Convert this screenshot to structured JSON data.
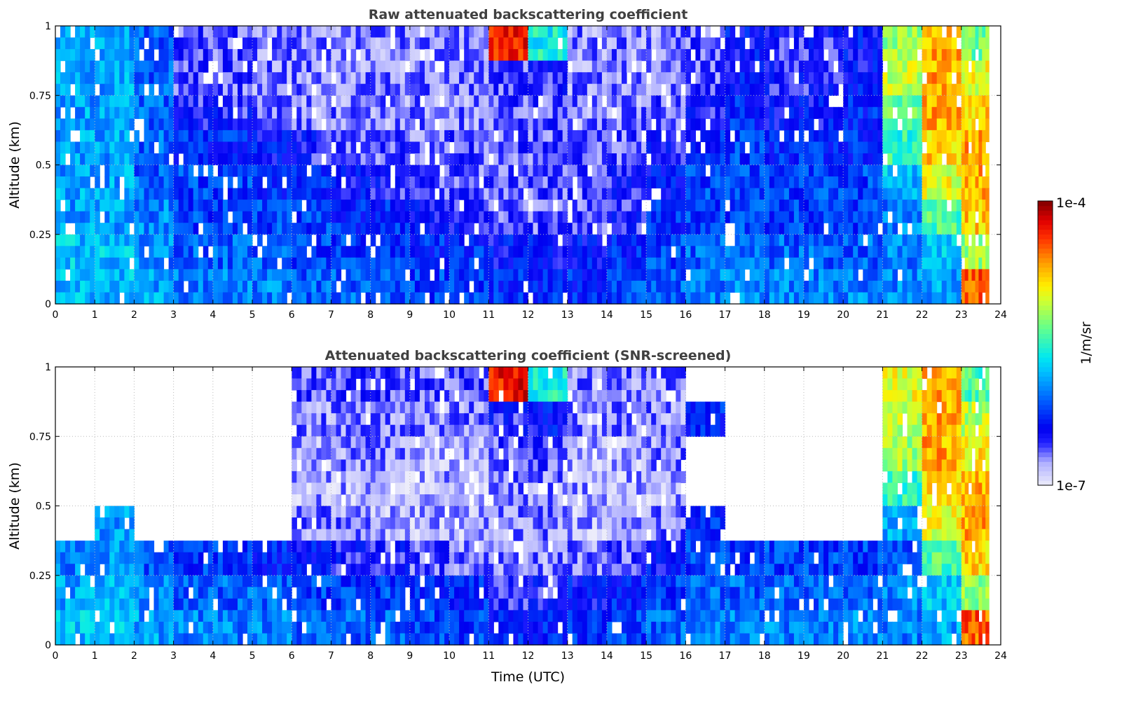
{
  "chart_data": {
    "type": "heatmap",
    "panels": [
      {
        "title": "Raw attenuated backscattering coefficient",
        "ylabel": "Altitude (km)",
        "xlabel": "",
        "x_hours": [
          0,
          1,
          2,
          3,
          4,
          5,
          6,
          7,
          8,
          9,
          10,
          11,
          12,
          13,
          14,
          15,
          16,
          17,
          18,
          19,
          20,
          21,
          22,
          23
        ],
        "altitude_bins_top_to_bottom_km": [
          0.9375,
          0.8125,
          0.6875,
          0.5625,
          0.4375,
          0.3125,
          0.1875,
          0.0625
        ],
        "log10_values": [
          [
            -5.9,
            -5.9,
            -6.1,
            -6.6,
            -6.6,
            -6.7,
            -6.7,
            -6.7,
            -6.7,
            -6.7,
            -6.7,
            -4.3,
            -5.6,
            -6.7,
            -6.7,
            -6.7,
            -6.6,
            -6.4,
            -6.5,
            -6.5,
            -6.4,
            -5.2,
            -4.7,
            -5.3
          ],
          [
            -5.9,
            -5.9,
            -6.1,
            -6.6,
            -6.6,
            -6.7,
            -6.7,
            -6.7,
            -6.7,
            -6.7,
            -6.7,
            -6.6,
            -6.5,
            -6.7,
            -6.7,
            -6.7,
            -6.6,
            -6.4,
            -6.5,
            -6.5,
            -6.4,
            -5.1,
            -4.7,
            -5.0
          ],
          [
            -5.9,
            -5.9,
            -6.1,
            -6.5,
            -6.5,
            -6.6,
            -6.7,
            -6.7,
            -6.7,
            -6.7,
            -6.7,
            -6.6,
            -6.6,
            -6.7,
            -6.7,
            -6.6,
            -6.5,
            -6.3,
            -6.4,
            -6.4,
            -6.3,
            -5.3,
            -4.7,
            -4.8
          ],
          [
            -5.9,
            -5.9,
            -6.1,
            -6.3,
            -6.3,
            -6.4,
            -6.5,
            -6.6,
            -6.6,
            -6.7,
            -6.6,
            -6.6,
            -6.6,
            -6.6,
            -6.6,
            -6.5,
            -6.3,
            -6.2,
            -6.3,
            -6.3,
            -6.3,
            -5.5,
            -4.8,
            -4.7
          ],
          [
            -5.9,
            -5.9,
            -6.1,
            -6.2,
            -6.2,
            -6.3,
            -6.3,
            -6.4,
            -6.5,
            -6.6,
            -6.6,
            -6.6,
            -6.6,
            -6.6,
            -6.5,
            -6.4,
            -6.2,
            -6.2,
            -6.2,
            -6.2,
            -6.2,
            -5.8,
            -5.0,
            -4.7
          ],
          [
            -5.9,
            -5.9,
            -6.0,
            -6.2,
            -6.2,
            -6.2,
            -6.2,
            -6.3,
            -6.3,
            -6.4,
            -6.5,
            -6.6,
            -6.6,
            -6.6,
            -6.5,
            -6.3,
            -6.2,
            -6.2,
            -6.2,
            -6.2,
            -6.2,
            -6.0,
            -5.4,
            -4.8
          ],
          [
            -5.8,
            -5.8,
            -6.0,
            -6.1,
            -6.1,
            -6.1,
            -6.2,
            -6.2,
            -6.2,
            -6.3,
            -6.3,
            -6.4,
            -6.4,
            -6.4,
            -6.3,
            -6.2,
            -6.1,
            -6.1,
            -6.1,
            -6.1,
            -6.1,
            -6.0,
            -5.8,
            -5.2
          ],
          [
            -5.8,
            -5.8,
            -5.9,
            -6.0,
            -6.0,
            -6.0,
            -6.1,
            -6.1,
            -6.1,
            -6.2,
            -6.2,
            -6.3,
            -6.3,
            -6.3,
            -6.2,
            -6.1,
            -6.0,
            -6.0,
            -6.0,
            -6.0,
            -6.0,
            -6.0,
            -5.9,
            -4.5
          ]
        ]
      },
      {
        "title": "Attenuated backscattering coefficient (SNR-screened)",
        "ylabel": "Altitude (km)",
        "xlabel": "Time (UTC)",
        "x_hours": [
          0,
          1,
          2,
          3,
          4,
          5,
          6,
          7,
          8,
          9,
          10,
          11,
          12,
          13,
          14,
          15,
          16,
          17,
          18,
          19,
          20,
          21,
          22,
          23
        ],
        "altitude_bins_top_to_bottom_km": [
          0.9375,
          0.8125,
          0.6875,
          0.5625,
          0.4375,
          0.3125,
          0.1875,
          0.0625
        ],
        "log10_values": [
          [
            null,
            null,
            null,
            null,
            null,
            null,
            -6.6,
            -6.6,
            -6.6,
            -6.6,
            -6.6,
            -4.3,
            -5.6,
            -6.7,
            -6.7,
            -6.7,
            null,
            null,
            null,
            null,
            null,
            -5.0,
            -4.7,
            -5.4
          ],
          [
            null,
            null,
            null,
            null,
            null,
            null,
            -6.7,
            -6.7,
            -6.7,
            -6.7,
            -6.7,
            -6.5,
            -6.4,
            -6.7,
            -6.7,
            -6.7,
            -6.3,
            null,
            null,
            null,
            null,
            -5.1,
            -4.7,
            -5.1
          ],
          [
            null,
            null,
            null,
            null,
            null,
            null,
            -6.8,
            -6.7,
            -6.7,
            -6.8,
            -6.8,
            -6.6,
            -6.6,
            -6.8,
            -6.8,
            -6.7,
            null,
            null,
            null,
            null,
            null,
            -5.2,
            -4.7,
            -4.9
          ],
          [
            null,
            null,
            null,
            null,
            null,
            null,
            -6.8,
            -6.8,
            -6.8,
            -6.8,
            -6.8,
            -6.7,
            -6.7,
            -6.8,
            -6.8,
            -6.8,
            null,
            null,
            null,
            null,
            null,
            -5.5,
            -4.8,
            -4.7
          ],
          [
            null,
            -5.9,
            null,
            null,
            null,
            null,
            -6.7,
            -6.7,
            -6.8,
            -6.8,
            -6.8,
            -6.7,
            -6.7,
            -6.8,
            -6.8,
            -6.7,
            -6.3,
            null,
            null,
            null,
            null,
            -5.9,
            -5.0,
            -4.7
          ],
          [
            -6.0,
            -5.9,
            -6.1,
            -6.2,
            -6.2,
            -6.3,
            -6.4,
            -6.5,
            -6.5,
            -6.6,
            -6.7,
            -6.7,
            -6.7,
            -6.7,
            -6.6,
            -6.4,
            -6.2,
            -6.2,
            -6.2,
            -6.2,
            -6.2,
            -6.1,
            -5.4,
            -4.8
          ],
          [
            -5.9,
            -5.8,
            -6.0,
            -6.1,
            -6.1,
            -6.1,
            -6.2,
            -6.2,
            -6.2,
            -6.3,
            -6.3,
            -6.5,
            -6.5,
            -6.4,
            -6.3,
            -6.2,
            -6.1,
            -6.1,
            -6.1,
            -6.1,
            -6.1,
            -6.0,
            -5.8,
            -5.2
          ],
          [
            -5.8,
            -5.8,
            -5.9,
            -6.0,
            -6.0,
            -6.0,
            -6.1,
            -6.1,
            -6.1,
            -6.2,
            -6.2,
            -6.3,
            -6.3,
            -6.3,
            -6.2,
            -6.1,
            -6.0,
            -6.0,
            -6.0,
            -6.0,
            -6.0,
            -6.0,
            -5.9,
            -4.5
          ]
        ]
      }
    ],
    "xlim": [
      0,
      24
    ],
    "ylim": [
      0,
      1
    ],
    "x_ticks": [
      "0",
      "1",
      "2",
      "3",
      "4",
      "5",
      "6",
      "7",
      "8",
      "9",
      "10",
      "11",
      "12",
      "13",
      "14",
      "15",
      "16",
      "17",
      "18",
      "19",
      "20",
      "21",
      "22",
      "23",
      "24"
    ],
    "y_ticks": [
      {
        "value": 0,
        "label": "0"
      },
      {
        "value": 0.25,
        "label": "0.25"
      },
      {
        "value": 0.5,
        "label": "0.5"
      },
      {
        "value": 0.75,
        "label": "0.75"
      },
      {
        "value": 1,
        "label": "1"
      }
    ],
    "grid": true,
    "colorbar": {
      "label": "1/m/sr",
      "min_label": "1e-7",
      "max_label": "1e-4",
      "log10_range": [
        -7,
        -4
      ],
      "colormap": [
        "#ececfa",
        "#b0b0ff",
        "#2020ff",
        "#0000f0",
        "#0060ff",
        "#00c0ff",
        "#00e8f0",
        "#60ff90",
        "#d0ff30",
        "#fff000",
        "#ffa000",
        "#ff3000",
        "#e00000",
        "#800000"
      ],
      "placement": "right"
    }
  }
}
